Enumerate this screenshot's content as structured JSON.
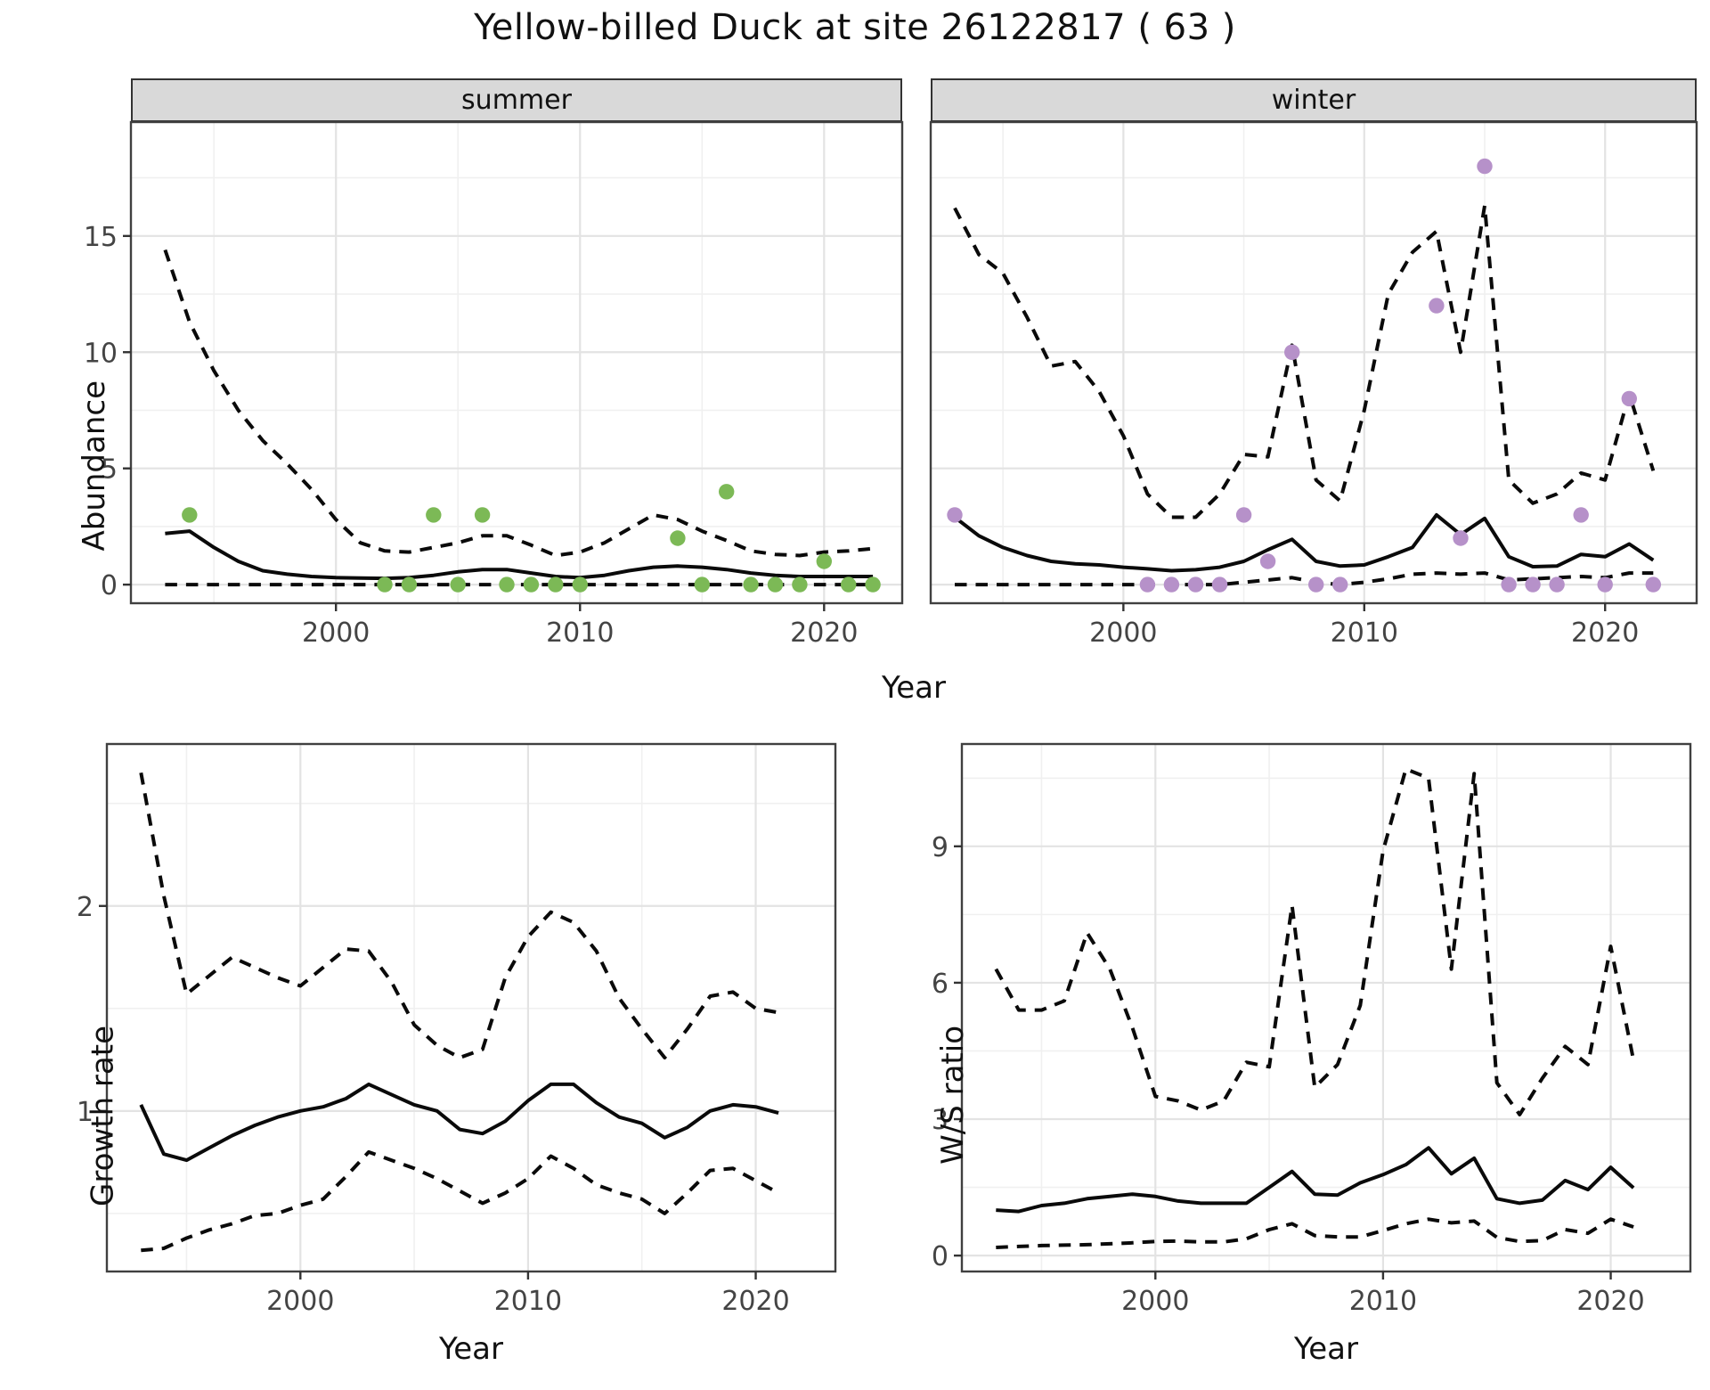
{
  "title": "Yellow-billed Duck at site 26122817 ( 63 )",
  "colors": {
    "summer_point": "#7CB956",
    "winter_point": "#B691C9",
    "line": "#0a0a0a",
    "grid_major": "#E3E3E3",
    "grid_minor": "#F0F0F0",
    "panel_border": "#404040",
    "axis_text": "#444444",
    "strip_bg": "#D9D9D9"
  },
  "chart_data": [
    {
      "id": "abundance-summer",
      "type": "line",
      "facet_label": "summer",
      "ylabel": "Abundance",
      "xlabel": "Year",
      "xlim": [
        1991.6,
        2023.2
      ],
      "ylim": [
        -0.8,
        19.9
      ],
      "x_ticks": [
        2000,
        2010,
        2020
      ],
      "x_minor_ticks": [
        1995,
        2005,
        2015
      ],
      "y_ticks": [
        0,
        5,
        10,
        15
      ],
      "y_minor_ticks": [
        2.5,
        7.5,
        12.5,
        17.5
      ],
      "years": [
        1993,
        1994,
        1995,
        1996,
        1997,
        1998,
        1999,
        2000,
        2001,
        2002,
        2003,
        2004,
        2005,
        2006,
        2007,
        2008,
        2009,
        2010,
        2011,
        2012,
        2013,
        2014,
        2015,
        2016,
        2017,
        2018,
        2019,
        2020,
        2021,
        2022
      ],
      "series": [
        {
          "name": "estimate",
          "style": "solid",
          "values": [
            2.2,
            2.3,
            1.6,
            1.0,
            0.6,
            0.45,
            0.35,
            0.3,
            0.28,
            0.27,
            0.3,
            0.4,
            0.55,
            0.65,
            0.65,
            0.5,
            0.35,
            0.3,
            0.4,
            0.6,
            0.75,
            0.8,
            0.75,
            0.65,
            0.5,
            0.4,
            0.35,
            0.35,
            0.35,
            0.35
          ]
        },
        {
          "name": "upper_ci",
          "style": "dashed",
          "values": [
            14.4,
            11.3,
            9.2,
            7.5,
            6.2,
            5.2,
            4.1,
            2.8,
            1.8,
            1.45,
            1.4,
            1.6,
            1.8,
            2.1,
            2.1,
            1.7,
            1.25,
            1.4,
            1.8,
            2.4,
            3.0,
            2.8,
            2.3,
            1.9,
            1.45,
            1.3,
            1.25,
            1.4,
            1.45,
            1.55
          ]
        },
        {
          "name": "lower_ci",
          "style": "dashed",
          "values": [
            0,
            0,
            0,
            0,
            0,
            0,
            0,
            0,
            0,
            0,
            0,
            0,
            0,
            0,
            0,
            0,
            0,
            0,
            0,
            0,
            0,
            0,
            0,
            0,
            0,
            0,
            0,
            0,
            0,
            0
          ]
        }
      ],
      "points": {
        "name": "observed_counts",
        "color": "#7CB956",
        "data": [
          [
            1994,
            3
          ],
          [
            2002,
            0
          ],
          [
            2003,
            0
          ],
          [
            2004,
            3
          ],
          [
            2005,
            0
          ],
          [
            2006,
            3
          ],
          [
            2007,
            0
          ],
          [
            2008,
            0
          ],
          [
            2009,
            0
          ],
          [
            2010,
            0
          ],
          [
            2014,
            2
          ],
          [
            2015,
            0
          ],
          [
            2016,
            4
          ],
          [
            2017,
            0
          ],
          [
            2018,
            0
          ],
          [
            2019,
            0
          ],
          [
            2020,
            1
          ],
          [
            2021,
            0
          ],
          [
            2022,
            0
          ]
        ]
      }
    },
    {
      "id": "abundance-winter",
      "type": "line",
      "facet_label": "winter",
      "ylabel": "Abundance",
      "xlabel": "Year",
      "xlim": [
        1992.0,
        2023.8
      ],
      "ylim": [
        -0.8,
        19.9
      ],
      "x_ticks": [
        2000,
        2010,
        2020
      ],
      "x_minor_ticks": [
        1995,
        2005,
        2015
      ],
      "y_ticks": [
        0,
        5,
        10,
        15
      ],
      "y_minor_ticks": [
        2.5,
        7.5,
        12.5,
        17.5
      ],
      "years": [
        1993,
        1994,
        1995,
        1996,
        1997,
        1998,
        1999,
        2000,
        2001,
        2002,
        2003,
        2004,
        2005,
        2006,
        2007,
        2008,
        2009,
        2010,
        2011,
        2012,
        2013,
        2014,
        2015,
        2016,
        2017,
        2018,
        2019,
        2020,
        2021,
        2022
      ],
      "series": [
        {
          "name": "estimate",
          "style": "solid",
          "values": [
            2.9,
            2.1,
            1.6,
            1.25,
            1.0,
            0.9,
            0.85,
            0.75,
            0.68,
            0.6,
            0.64,
            0.75,
            1.0,
            1.5,
            1.95,
            1.0,
            0.8,
            0.85,
            1.2,
            1.6,
            3.0,
            2.15,
            2.85,
            1.2,
            0.77,
            0.8,
            1.3,
            1.2,
            1.75,
            1.05
          ]
        },
        {
          "name": "upper_ci",
          "style": "dashed",
          "values": [
            16.2,
            14.2,
            13.4,
            11.5,
            9.4,
            9.6,
            8.3,
            6.4,
            3.9,
            2.9,
            2.9,
            3.9,
            5.6,
            5.5,
            10.3,
            4.5,
            3.6,
            7.5,
            12.5,
            14.3,
            15.2,
            10.0,
            16.3,
            4.5,
            3.5,
            3.9,
            4.8,
            4.5,
            8.2,
            4.9
          ]
        },
        {
          "name": "lower_ci",
          "style": "dashed",
          "values": [
            0,
            0,
            0,
            0,
            0,
            0,
            0,
            0,
            0,
            0,
            0,
            0,
            0.1,
            0.2,
            0.3,
            0.1,
            0,
            0.1,
            0.25,
            0.45,
            0.5,
            0.45,
            0.5,
            0.2,
            0.25,
            0.3,
            0.35,
            0.3,
            0.5,
            0.5
          ]
        }
      ],
      "points": {
        "name": "observed_counts",
        "color": "#B691C9",
        "data": [
          [
            1993,
            3
          ],
          [
            2001,
            0
          ],
          [
            2002,
            0
          ],
          [
            2003,
            0
          ],
          [
            2004,
            0
          ],
          [
            2005,
            3
          ],
          [
            2006,
            1
          ],
          [
            2007,
            10
          ],
          [
            2008,
            0
          ],
          [
            2009,
            0
          ],
          [
            2013,
            12
          ],
          [
            2014,
            2
          ],
          [
            2015,
            18
          ],
          [
            2016,
            0
          ],
          [
            2017,
            0
          ],
          [
            2018,
            0
          ],
          [
            2019,
            3
          ],
          [
            2020,
            0
          ],
          [
            2021,
            8
          ],
          [
            2022,
            0
          ]
        ]
      }
    },
    {
      "id": "growth-rate",
      "type": "line",
      "ylabel": "Growth rate",
      "xlabel": "Year",
      "xlim": [
        1991.5,
        2023.5
      ],
      "ylim": [
        0.217,
        2.79
      ],
      "x_ticks": [
        2000,
        2010,
        2020
      ],
      "x_minor_ticks": [
        1995,
        2005,
        2015
      ],
      "y_ticks": [
        1,
        2
      ],
      "y_minor_ticks": [
        0.5,
        1.5,
        2.5
      ],
      "years": [
        1993,
        1994,
        1995,
        1996,
        1997,
        1998,
        1999,
        2000,
        2001,
        2002,
        2003,
        2004,
        2005,
        2006,
        2007,
        2008,
        2009,
        2010,
        2011,
        2012,
        2013,
        2014,
        2015,
        2016,
        2017,
        2018,
        2019,
        2020,
        2021
      ],
      "series": [
        {
          "name": "estimate",
          "style": "solid",
          "values": [
            1.03,
            0.79,
            0.76,
            0.82,
            0.88,
            0.93,
            0.97,
            1.0,
            1.02,
            1.06,
            1.13,
            1.08,
            1.03,
            1.0,
            0.91,
            0.89,
            0.95,
            1.05,
            1.13,
            1.13,
            1.04,
            0.97,
            0.94,
            0.87,
            0.92,
            1.0,
            1.03,
            1.02,
            0.99
          ]
        },
        {
          "name": "upper_ci",
          "style": "dashed",
          "values": [
            2.65,
            2.05,
            1.57,
            1.66,
            1.75,
            1.7,
            1.65,
            1.61,
            1.7,
            1.79,
            1.78,
            1.63,
            1.42,
            1.32,
            1.26,
            1.3,
            1.65,
            1.85,
            1.97,
            1.92,
            1.78,
            1.55,
            1.4,
            1.26,
            1.4,
            1.56,
            1.58,
            1.5,
            1.48
          ]
        },
        {
          "name": "lower_ci",
          "style": "dashed",
          "values": [
            0.32,
            0.33,
            0.38,
            0.42,
            0.45,
            0.49,
            0.5,
            0.54,
            0.57,
            0.68,
            0.8,
            0.76,
            0.72,
            0.67,
            0.61,
            0.55,
            0.6,
            0.67,
            0.78,
            0.72,
            0.64,
            0.6,
            0.57,
            0.5,
            0.6,
            0.71,
            0.72,
            0.66,
            0.6
          ]
        }
      ]
    },
    {
      "id": "ws-ratio",
      "type": "line",
      "ylabel": "W/S ratio",
      "xlabel": "Year",
      "xlim": [
        1991.5,
        2023.5
      ],
      "ylim": [
        -0.35,
        11.25
      ],
      "x_ticks": [
        2000,
        2010,
        2020
      ],
      "x_minor_ticks": [
        1995,
        2005,
        2015
      ],
      "y_ticks": [
        0,
        3,
        6,
        9
      ],
      "y_minor_ticks": [
        1.5,
        4.5,
        7.5,
        10.5
      ],
      "years": [
        1993,
        1994,
        1995,
        1996,
        1997,
        1998,
        1999,
        2000,
        2001,
        2002,
        2003,
        2004,
        2005,
        2006,
        2007,
        2008,
        2009,
        2010,
        2011,
        2012,
        2013,
        2014,
        2015,
        2016,
        2017,
        2018,
        2019,
        2020,
        2021
      ],
      "series": [
        {
          "name": "estimate",
          "style": "solid",
          "values": [
            1.0,
            0.97,
            1.1,
            1.15,
            1.25,
            1.3,
            1.35,
            1.3,
            1.2,
            1.15,
            1.15,
            1.15,
            1.5,
            1.85,
            1.35,
            1.33,
            1.6,
            1.78,
            2.0,
            2.37,
            1.8,
            2.14,
            1.25,
            1.15,
            1.22,
            1.65,
            1.45,
            1.94,
            1.49
          ]
        },
        {
          "name": "upper_ci",
          "style": "dashed",
          "values": [
            6.3,
            5.4,
            5.4,
            5.6,
            7.1,
            6.3,
            5.0,
            3.5,
            3.4,
            3.2,
            3.4,
            4.25,
            4.15,
            7.7,
            3.7,
            4.2,
            5.5,
            8.9,
            10.7,
            10.5,
            6.3,
            10.6,
            3.8,
            3.1,
            3.9,
            4.6,
            4.2,
            6.8,
            4.3
          ]
        },
        {
          "name": "lower_ci",
          "style": "dashed",
          "values": [
            0.18,
            0.2,
            0.22,
            0.23,
            0.24,
            0.26,
            0.28,
            0.31,
            0.32,
            0.3,
            0.3,
            0.37,
            0.57,
            0.7,
            0.44,
            0.41,
            0.41,
            0.55,
            0.7,
            0.8,
            0.72,
            0.76,
            0.4,
            0.31,
            0.33,
            0.57,
            0.49,
            0.8,
            0.63
          ]
        }
      ]
    }
  ]
}
